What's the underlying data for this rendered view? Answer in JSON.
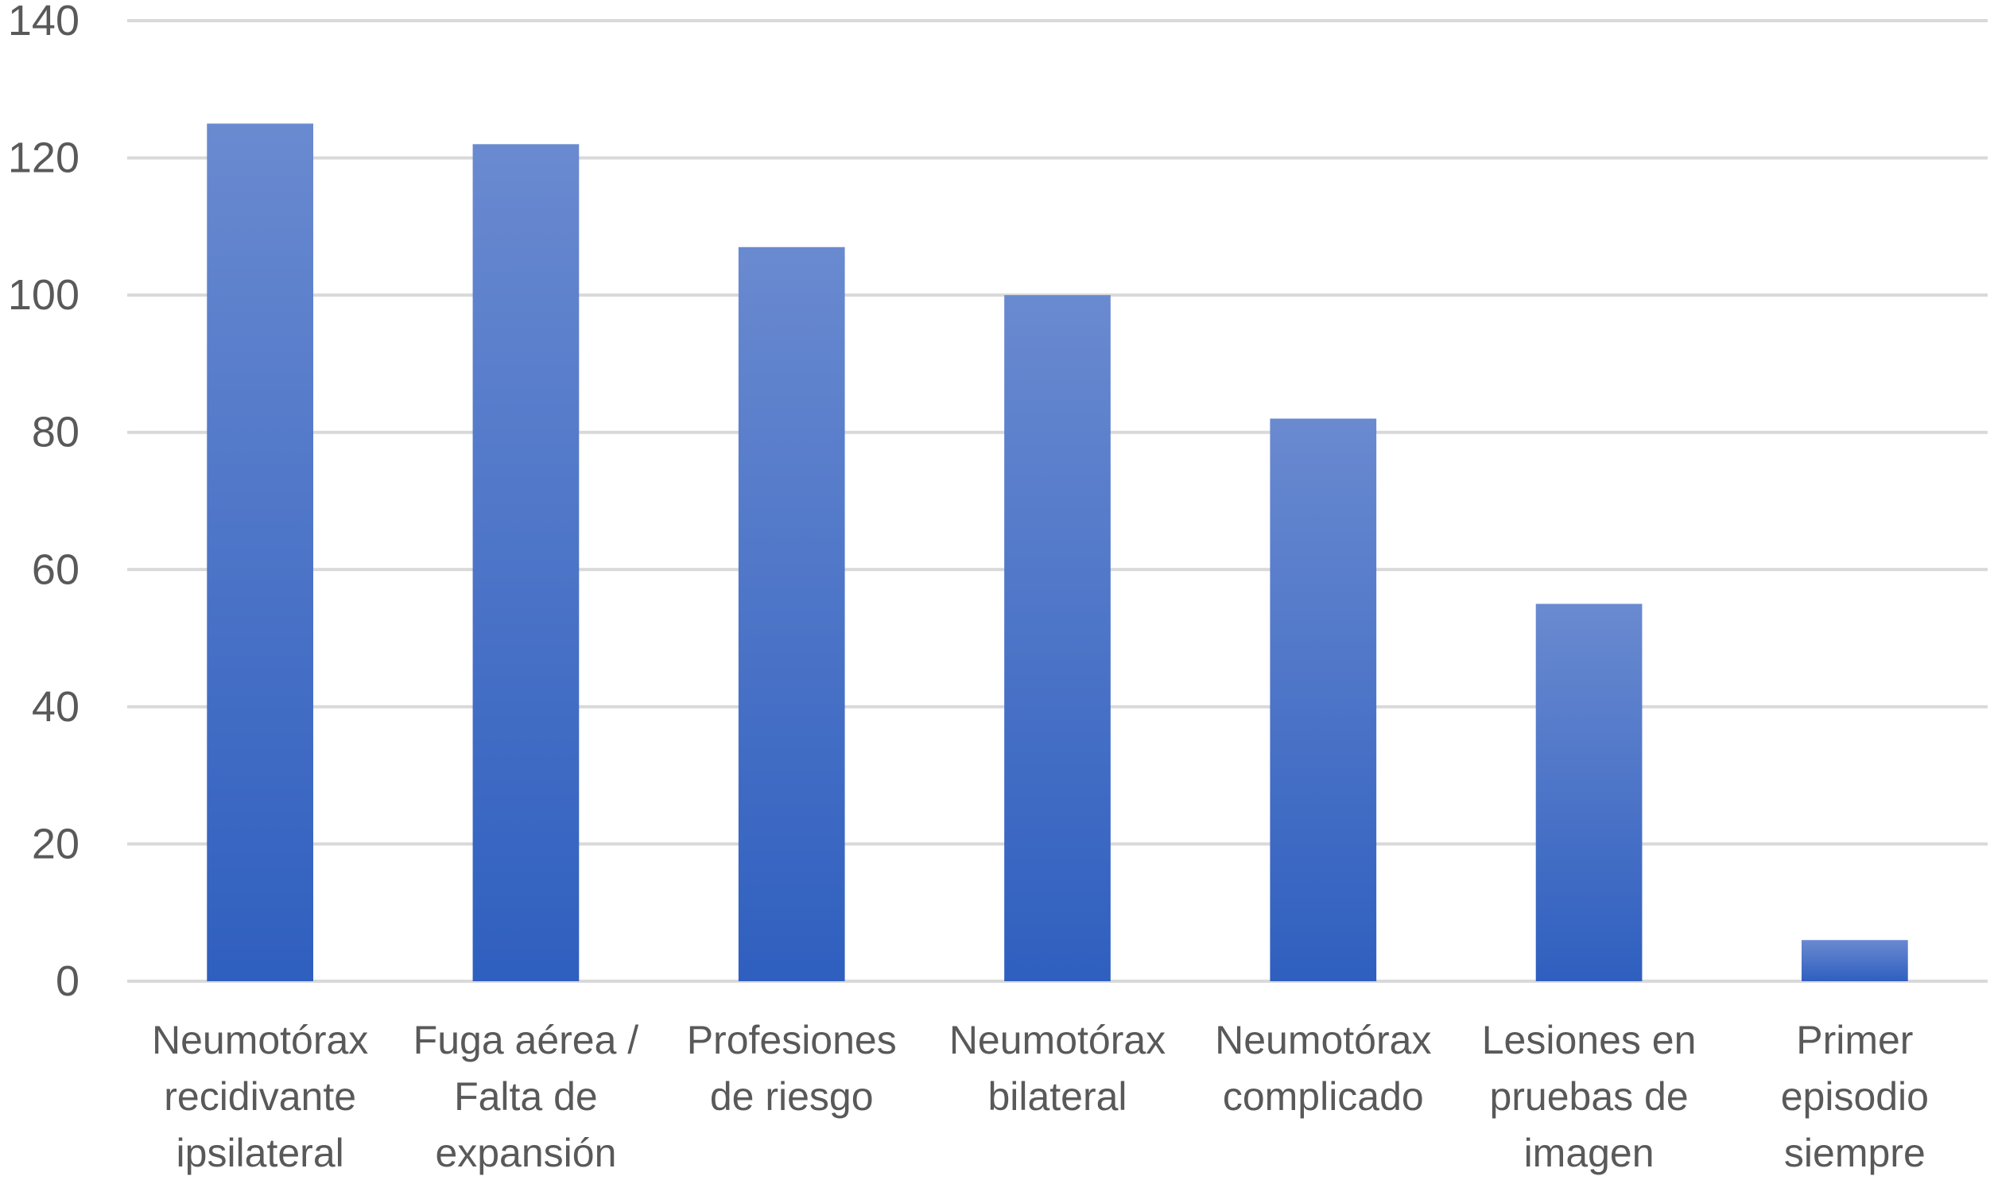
{
  "chart_data": {
    "type": "bar",
    "categories": [
      [
        "Neumotórax",
        "recidivante",
        "ipsilateral"
      ],
      [
        "Fuga aérea /",
        "Falta de",
        "expansión"
      ],
      [
        "Profesiones",
        "de riesgo"
      ],
      [
        "Neumotórax",
        "bilateral"
      ],
      [
        "Neumotórax",
        "complicado"
      ],
      [
        "Lesiones en",
        "pruebas de",
        "imagen"
      ],
      [
        "Primer",
        "episodio",
        "siempre"
      ]
    ],
    "values": [
      125,
      122,
      107,
      100,
      82,
      55,
      6
    ],
    "ylim": [
      0,
      140
    ],
    "yticks": [
      0,
      20,
      40,
      60,
      80,
      100,
      120,
      140
    ],
    "grid": true,
    "legend": "none",
    "colors": {
      "bar_top": "#6a8ad0",
      "bar_bottom": "#2f5fbf",
      "grid": "#d9d9d9",
      "text": "#595959"
    }
  }
}
